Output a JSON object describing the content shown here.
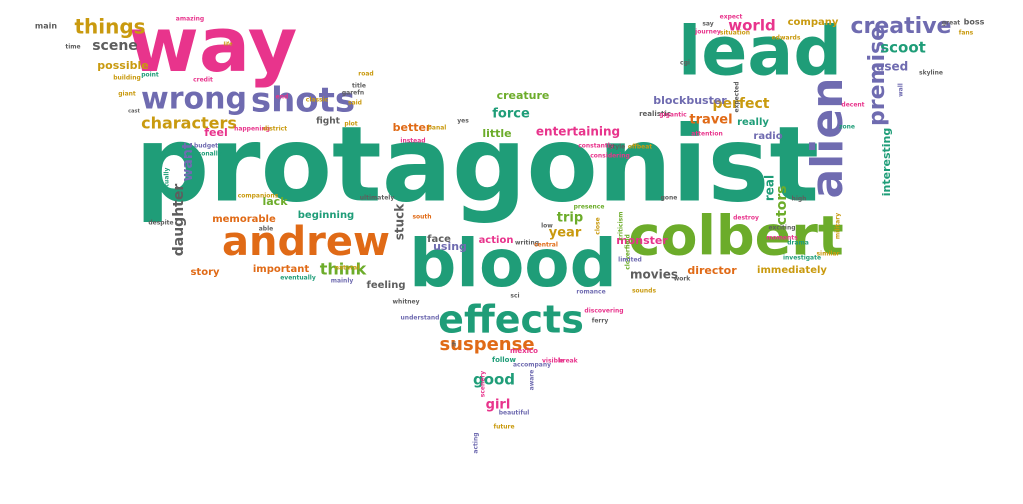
{
  "palette": {
    "teal": "#1f9d78",
    "pink": "#e8348c",
    "purple": "#6f6bb0",
    "orange": "#e06a16",
    "green": "#6cac2a",
    "olive": "#c99a0f",
    "gray": "#5e5e5e",
    "background": "#ffffff"
  },
  "words": [
    {
      "text": "protagonist",
      "color": "teal"
    },
    {
      "text": "way",
      "color": "pink"
    },
    {
      "text": "lead",
      "color": "teal"
    },
    {
      "text": "blood",
      "color": "teal"
    },
    {
      "text": "colbert",
      "color": "green"
    },
    {
      "text": "andrew",
      "color": "orange"
    },
    {
      "text": "effects",
      "color": "teal"
    },
    {
      "text": "alien",
      "color": "purple"
    },
    {
      "text": "shots",
      "color": "purple"
    },
    {
      "text": "wrong",
      "color": "purple"
    },
    {
      "text": "creative",
      "color": "purple"
    },
    {
      "text": "things",
      "color": "olive"
    },
    {
      "text": "suspense",
      "color": "orange"
    },
    {
      "text": "scene",
      "color": "gray"
    },
    {
      "text": "characters",
      "color": "olive"
    },
    {
      "text": "premise",
      "color": "purple"
    },
    {
      "text": "think",
      "color": "green"
    },
    {
      "text": "good",
      "color": "teal"
    },
    {
      "text": "scoot",
      "color": "teal"
    },
    {
      "text": "world",
      "color": "pink"
    },
    {
      "text": "travel",
      "color": "orange"
    },
    {
      "text": "actors",
      "color": "green"
    },
    {
      "text": "daughter",
      "color": "gray"
    },
    {
      "text": "creature",
      "color": "green"
    },
    {
      "text": "force",
      "color": "teal"
    },
    {
      "text": "entertaining",
      "color": "pink"
    },
    {
      "text": "possible",
      "color": "olive"
    },
    {
      "text": "perfect",
      "color": "olive"
    },
    {
      "text": "used",
      "color": "purple"
    },
    {
      "text": "company",
      "color": "olive"
    },
    {
      "text": "trip",
      "color": "green"
    },
    {
      "text": "year",
      "color": "olive"
    },
    {
      "text": "girl",
      "color": "pink"
    },
    {
      "text": "movies",
      "color": "gray"
    },
    {
      "text": "director",
      "color": "orange"
    },
    {
      "text": "immediately",
      "color": "olive"
    },
    {
      "text": "story",
      "color": "orange"
    },
    {
      "text": "important",
      "color": "orange"
    },
    {
      "text": "memorable",
      "color": "orange"
    },
    {
      "text": "beginning",
      "color": "teal"
    },
    {
      "text": "feeling",
      "color": "gray"
    },
    {
      "text": "action",
      "color": "pink"
    },
    {
      "text": "face",
      "color": "gray"
    },
    {
      "text": "lack",
      "color": "green"
    },
    {
      "text": "want",
      "color": "purple"
    },
    {
      "text": "feel",
      "color": "pink"
    },
    {
      "text": "better",
      "color": "orange"
    },
    {
      "text": "little",
      "color": "green"
    },
    {
      "text": "really",
      "color": "teal"
    },
    {
      "text": "radio",
      "color": "purple"
    },
    {
      "text": "real",
      "color": "teal"
    },
    {
      "text": "interesting",
      "color": "teal"
    },
    {
      "text": "monster",
      "color": "pink"
    },
    {
      "text": "blockbuster",
      "color": "purple"
    },
    {
      "text": "stuck",
      "color": "gray"
    },
    {
      "text": "using",
      "color": "purple"
    },
    {
      "text": "fight",
      "color": "gray"
    },
    {
      "text": "main",
      "color": "gray"
    },
    {
      "text": "amazing",
      "color": "pink"
    },
    {
      "text": "time",
      "color": "gray"
    },
    {
      "text": "building",
      "color": "olive"
    },
    {
      "text": "point",
      "color": "teal"
    },
    {
      "text": "credit",
      "color": "pink"
    },
    {
      "text": "giant",
      "color": "olive"
    },
    {
      "text": "cast",
      "color": "gray"
    },
    {
      "text": "personally",
      "color": "teal"
    },
    {
      "text": "budget",
      "color": "purple"
    },
    {
      "text": "life",
      "color": "olive"
    },
    {
      "text": "road",
      "color": "olive"
    },
    {
      "text": "title",
      "color": "gray"
    },
    {
      "text": "garefn",
      "color": "gray"
    },
    {
      "text": "said",
      "color": "olive"
    },
    {
      "text": "end",
      "color": "pink"
    },
    {
      "text": "classic",
      "color": "olive"
    },
    {
      "text": "happening",
      "color": "pink"
    },
    {
      "text": "district",
      "color": "olive"
    },
    {
      "text": "plot",
      "color": "olive"
    },
    {
      "text": "expect",
      "color": "pink"
    },
    {
      "text": "say",
      "color": "gray"
    },
    {
      "text": "journey",
      "color": "pink"
    },
    {
      "text": "situation",
      "color": "olive"
    },
    {
      "text": "edwards",
      "color": "olive"
    },
    {
      "text": "great",
      "color": "gray"
    },
    {
      "text": "boss",
      "color": "gray"
    },
    {
      "text": "fans",
      "color": "olive"
    },
    {
      "text": "cgi",
      "color": "gray"
    },
    {
      "text": "skyline",
      "color": "gray"
    },
    {
      "text": "wall",
      "color": "purple"
    },
    {
      "text": "decent",
      "color": "pink"
    },
    {
      "text": "zone",
      "color": "teal"
    },
    {
      "text": "realistic",
      "color": "gray"
    },
    {
      "text": "attention",
      "color": "pink"
    },
    {
      "text": "constantly",
      "color": "pink"
    },
    {
      "text": "style",
      "color": "gray"
    },
    {
      "text": "offbeat",
      "color": "olive"
    },
    {
      "text": "considering",
      "color": "pink"
    },
    {
      "text": "yes",
      "color": "gray"
    },
    {
      "text": "banal",
      "color": "olive"
    },
    {
      "text": "instead",
      "color": "pink"
    },
    {
      "text": "ultimately",
      "color": "gray"
    },
    {
      "text": "companions",
      "color": "olive"
    },
    {
      "text": "actually",
      "color": "teal"
    },
    {
      "text": "despite",
      "color": "gray"
    },
    {
      "text": "able",
      "color": "gray"
    },
    {
      "text": "eventually",
      "color": "teal"
    },
    {
      "text": "natural",
      "color": "olive"
    },
    {
      "text": "mainly",
      "color": "purple"
    },
    {
      "text": "whitney",
      "color": "gray"
    },
    {
      "text": "understand",
      "color": "purple"
    },
    {
      "text": "south",
      "color": "orange"
    },
    {
      "text": "low",
      "color": "gray"
    },
    {
      "text": "writing",
      "color": "gray"
    },
    {
      "text": "central",
      "color": "orange"
    },
    {
      "text": "close",
      "color": "olive"
    },
    {
      "text": "criticism",
      "color": "green"
    },
    {
      "text": "cloverfield",
      "color": "green"
    },
    {
      "text": "discovering",
      "color": "pink"
    },
    {
      "text": "romance",
      "color": "purple"
    },
    {
      "text": "ferry",
      "color": "gray"
    },
    {
      "text": "sounds",
      "color": "olive"
    },
    {
      "text": "high",
      "color": "gray"
    },
    {
      "text": "exciting",
      "color": "gray"
    },
    {
      "text": "destroy",
      "color": "pink"
    },
    {
      "text": "moments",
      "color": "pink"
    },
    {
      "text": "drama",
      "color": "teal"
    },
    {
      "text": "similar",
      "color": "olive"
    },
    {
      "text": "military",
      "color": "olive"
    },
    {
      "text": "investigate",
      "color": "teal"
    },
    {
      "text": "work",
      "color": "gray"
    },
    {
      "text": "mexico",
      "color": "pink"
    },
    {
      "text": "follow",
      "color": "teal"
    },
    {
      "text": "accompany",
      "color": "purple"
    },
    {
      "text": "visible",
      "color": "pink"
    },
    {
      "text": "break",
      "color": "pink"
    },
    {
      "text": "aware",
      "color": "purple"
    },
    {
      "text": "scenery",
      "color": "pink"
    },
    {
      "text": "beautiful",
      "color": "purple"
    },
    {
      "text": "future",
      "color": "olive"
    },
    {
      "text": "acting",
      "color": "purple"
    },
    {
      "text": "presence",
      "color": "green"
    },
    {
      "text": "fi",
      "color": "gray"
    },
    {
      "text": "sci",
      "color": "gray"
    },
    {
      "text": "limited",
      "color": "purple"
    },
    {
      "text": "gone",
      "color": "gray"
    },
    {
      "text": "expected",
      "color": "gray"
    },
    {
      "text": "gigantic",
      "color": "pink"
    },
    {
      "text": "lesson",
      "color": "pink"
    }
  ]
}
